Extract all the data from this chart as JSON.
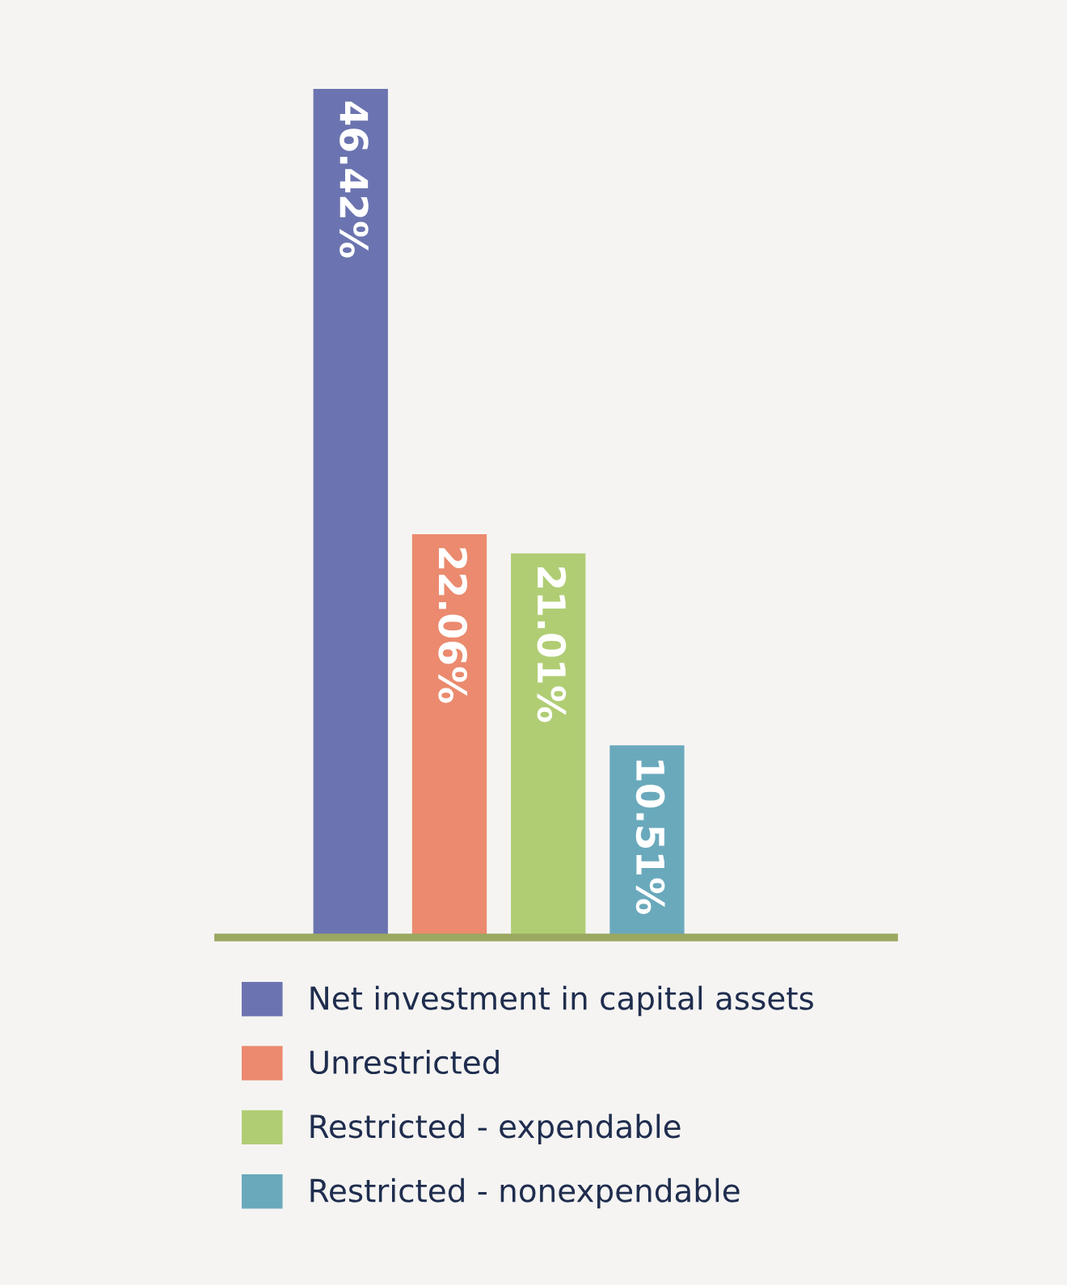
{
  "chart_data": {
    "type": "bar",
    "categories": [
      null,
      null,
      null,
      null
    ],
    "stacked": true,
    "series": [
      {
        "name": "Net investment in capital assets",
        "color": "#6b74b0",
        "values": [
          46.42,
          null,
          null,
          null
        ],
        "value_labels": [
          "46.42%",
          null,
          null,
          null
        ]
      },
      {
        "name": "Unrestricted",
        "color": "#eb8a6e",
        "values": [
          null,
          22.06,
          null,
          null
        ],
        "value_labels": [
          null,
          "22.06%",
          null,
          null
        ]
      },
      {
        "name": "Restricted - expendable",
        "color": "#b0cd74",
        "values": [
          null,
          null,
          21.01,
          null
        ],
        "value_labels": [
          null,
          null,
          "21.01%",
          null
        ]
      },
      {
        "name": "Restricted - nonexpendable",
        "color": "#6aa9bc",
        "values": [
          null,
          null,
          null,
          10.51
        ],
        "value_labels": [
          null,
          null,
          null,
          "10.51%"
        ]
      }
    ],
    "legend": "bottom",
    "grid": false,
    "tick_labels": false
  }
}
